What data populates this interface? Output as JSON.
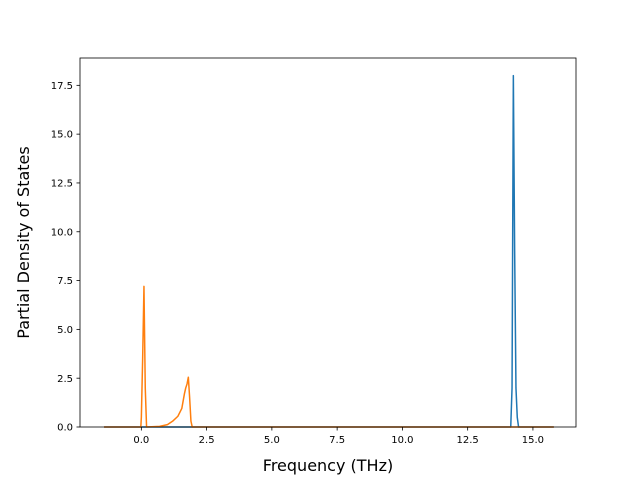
{
  "chart_data": {
    "type": "line",
    "title": "",
    "xlabel": "Frequency (THz)",
    "ylabel": "Partial Density of States",
    "xlim": [
      -2.35,
      16.65
    ],
    "ylim": [
      0,
      18.9
    ],
    "xticks": [
      0.0,
      2.5,
      5.0,
      7.5,
      10.0,
      12.5,
      15.0
    ],
    "xtick_labels": [
      "0.0",
      "2.5",
      "5.0",
      "7.5",
      "10.0",
      "12.5",
      "15.0"
    ],
    "yticks": [
      0.0,
      2.5,
      5.0,
      7.5,
      10.0,
      12.5,
      15.0,
      17.5
    ],
    "ytick_labels": [
      "0.0",
      "2.5",
      "5.0",
      "7.5",
      "10.0",
      "12.5",
      "15.0",
      "17.5"
    ],
    "grid": false,
    "legend": false,
    "series": [
      {
        "color": "#1f77b4",
        "x": [
          -1.43,
          14.15,
          14.2,
          14.25,
          14.3,
          14.35,
          14.4,
          14.45,
          15.8
        ],
        "y": [
          0,
          0,
          2.0,
          18.0,
          9.0,
          2.0,
          0.5,
          0,
          0
        ]
      },
      {
        "color": "#ff7f0e",
        "x": [
          -1.43,
          -0.02,
          0.0,
          0.05,
          0.1,
          0.15,
          0.2,
          0.7,
          1.0,
          1.2,
          1.4,
          1.55,
          1.65,
          1.7,
          1.75,
          1.8,
          1.85,
          1.9,
          1.95,
          2.0,
          15.8
        ],
        "y": [
          0,
          0,
          0.5,
          3.5,
          7.2,
          2.0,
          0,
          0.03,
          0.12,
          0.3,
          0.55,
          0.95,
          1.7,
          2.0,
          2.2,
          2.55,
          1.5,
          0.3,
          0,
          0,
          0
        ]
      }
    ]
  }
}
